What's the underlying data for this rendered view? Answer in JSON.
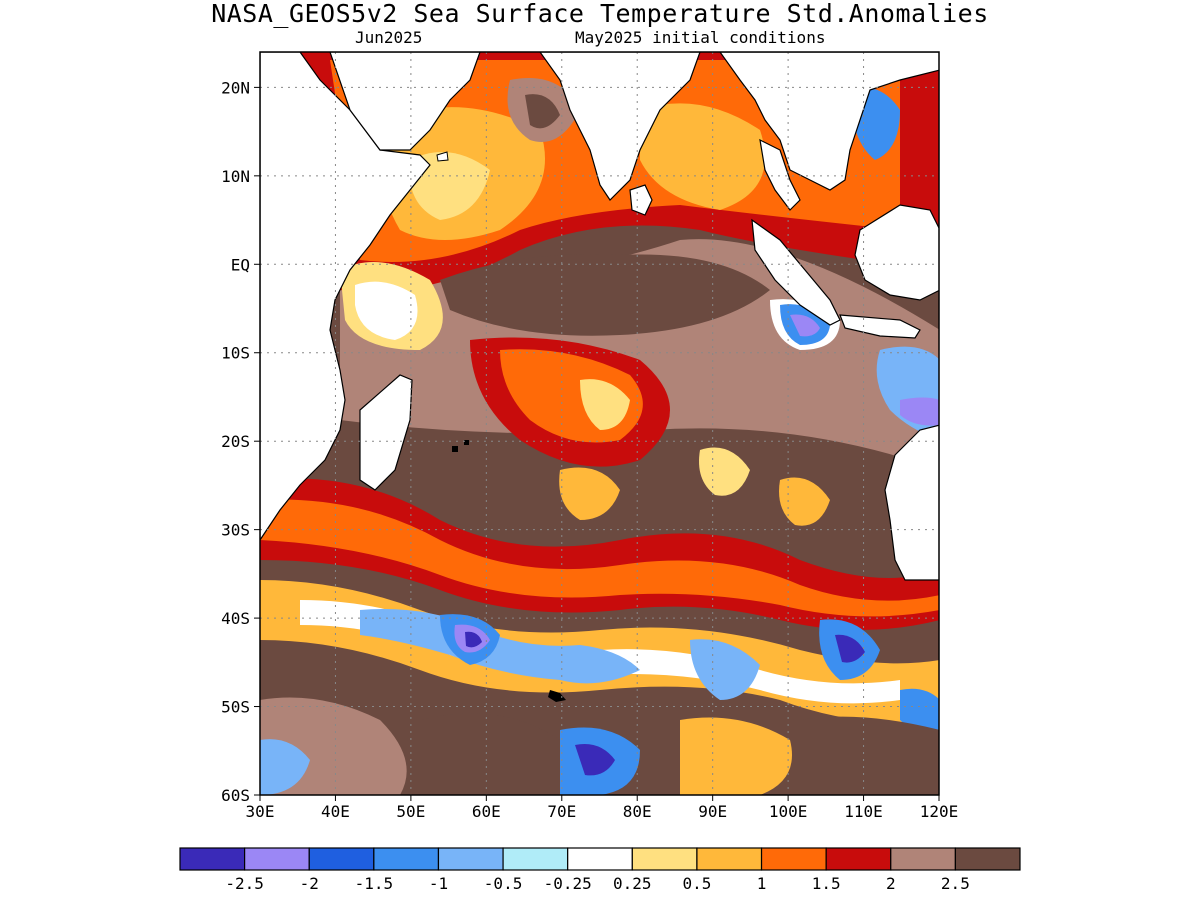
{
  "title": "NASA_GEOS5v2 Sea Surface Temperature Std.Anomalies",
  "subtitle_left": "Jun2025",
  "subtitle_right": "May2025 initial conditions",
  "map": {
    "lon_range": [
      30,
      120
    ],
    "lat_range": [
      -60,
      24
    ],
    "x_ticks": [
      "30E",
      "40E",
      "50E",
      "60E",
      "70E",
      "80E",
      "90E",
      "100E",
      "110E",
      "120E"
    ],
    "x_tick_values": [
      30,
      40,
      50,
      60,
      70,
      80,
      90,
      100,
      110,
      120
    ],
    "y_ticks": [
      "20N",
      "10N",
      "EQ",
      "10S",
      "20S",
      "30S",
      "40S",
      "50S",
      "60S"
    ],
    "y_tick_values": [
      20,
      10,
      0,
      -10,
      -20,
      -30,
      -40,
      -50,
      -60
    ],
    "gridlines": "dotted",
    "land_color": "#ffffff",
    "coastline_color": "#000000"
  },
  "colorbar": {
    "colors": [
      "#3a2ab8",
      "#9b87f5",
      "#1f5fe0",
      "#3c8ff0",
      "#78b4f8",
      "#b0ecf8",
      "#ffffff",
      "#ffe080",
      "#ffb83a",
      "#ff6a08",
      "#c80c0c",
      "#b08478",
      "#6b4a40"
    ],
    "labels": [
      "-2.5",
      "-2",
      "-1.5",
      "-1",
      "-0.5",
      "-0.25",
      "0.25",
      "0.5",
      "1",
      "1.5",
      "2",
      "2.5"
    ]
  }
}
